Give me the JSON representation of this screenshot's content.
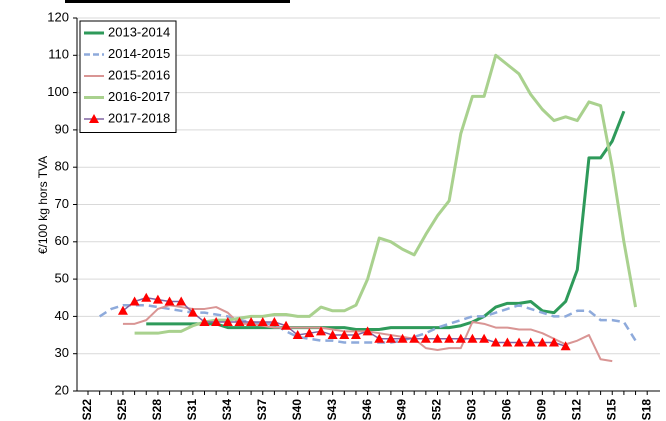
{
  "chart_data": {
    "type": "line",
    "y_label": "€/100 kg hors TVA",
    "categories": [
      "S22",
      null,
      null,
      "S25",
      null,
      null,
      "S28",
      null,
      null,
      "S31",
      null,
      null,
      "S34",
      null,
      null,
      "S37",
      null,
      null,
      "S40",
      null,
      null,
      "S43",
      null,
      null,
      "S46",
      null,
      null,
      "S49",
      null,
      null,
      "S52",
      null,
      null,
      "S03",
      null,
      null,
      "S06",
      null,
      null,
      "S09",
      null,
      null,
      "S12",
      null,
      null,
      "S15",
      null,
      null,
      "S18"
    ],
    "ylim": [
      20,
      120
    ],
    "yticks": [
      20,
      30,
      40,
      50,
      60,
      70,
      80,
      90,
      100,
      110,
      120
    ],
    "grid": true,
    "legend": "upper left",
    "series": [
      {
        "name": "2013-2014",
        "color": "#2e9a5a",
        "width": 3,
        "values": [
          null,
          null,
          null,
          null,
          null,
          38,
          38,
          38,
          38,
          38,
          38,
          38,
          37,
          37,
          37,
          37,
          37,
          37,
          37,
          37,
          37,
          37,
          37,
          36.5,
          36.5,
          36.5,
          37,
          37,
          37,
          37,
          37,
          37,
          37.5,
          38.5,
          40,
          42.5,
          43.5,
          43.5,
          44,
          41.5,
          41,
          44,
          52.5,
          82.5,
          82.5,
          87,
          95,
          null,
          null
        ]
      },
      {
        "name": "2014-2015",
        "color": "#8eaadb",
        "width": 2.5,
        "dashed": true,
        "values": [
          null,
          40,
          42,
          43,
          43,
          43,
          42.5,
          42,
          41.5,
          41,
          41,
          40.5,
          40,
          39,
          38.5,
          38,
          38,
          36,
          34.5,
          34,
          33.5,
          33.5,
          33,
          33,
          33,
          33,
          33,
          33.5,
          34.5,
          35.5,
          37,
          38,
          39,
          40,
          40,
          41,
          42,
          43,
          42,
          41,
          40,
          40,
          41.5,
          41.5,
          39,
          39,
          38.5,
          33.5,
          null
        ]
      },
      {
        "name": "2015-2016",
        "color": "#d99594",
        "width": 2,
        "values": [
          null,
          null,
          null,
          38,
          38,
          39,
          42,
          43,
          42.5,
          42,
          42,
          42.5,
          41,
          38,
          38,
          37.5,
          37,
          37,
          37,
          37,
          37,
          36.5,
          36,
          36,
          36,
          35.5,
          35,
          34.5,
          34,
          31.5,
          31,
          31.5,
          31.5,
          38.5,
          38,
          37,
          37,
          36.5,
          36.5,
          35.5,
          34,
          32.5,
          33.5,
          35,
          28.5,
          28,
          null,
          null,
          null
        ]
      },
      {
        "name": "2016-2017",
        "color": "#a9d18e",
        "width": 3,
        "values": [
          null,
          null,
          null,
          null,
          35.5,
          35.5,
          35.5,
          36,
          36,
          37.5,
          38.5,
          39,
          39,
          39.5,
          40,
          40,
          40.5,
          40.5,
          40,
          40,
          42.5,
          41.5,
          41.5,
          43,
          50,
          61,
          60,
          58,
          56.5,
          62,
          67,
          71,
          89,
          99,
          99,
          110,
          107.5,
          105,
          99.5,
          95.5,
          92.5,
          93.5,
          92.5,
          97.5,
          96.5,
          80,
          60,
          42.5,
          null
        ]
      },
      {
        "name": "2017-2018",
        "color": "#8064a2",
        "width": 1.5,
        "marker": "triangle",
        "marker_color": "#ff0000",
        "values": [
          null,
          null,
          null,
          41.5,
          44,
          45,
          44.5,
          44,
          44,
          41,
          38.5,
          38.5,
          38.5,
          38.5,
          38.5,
          38.5,
          38.5,
          37.5,
          35,
          35.5,
          36,
          35,
          35,
          35,
          36,
          34,
          34,
          34,
          34,
          34,
          34,
          34,
          34,
          34,
          34,
          33,
          33,
          33,
          33,
          33,
          33,
          32,
          null,
          null,
          null,
          null,
          null,
          null,
          null
        ]
      }
    ]
  }
}
